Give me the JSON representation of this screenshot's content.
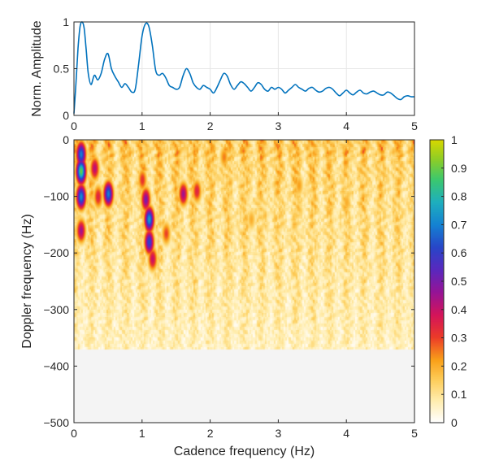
{
  "chart_data": [
    {
      "type": "line",
      "title": "",
      "xlabel": "",
      "ylabel": "Norm. Amplitude",
      "xlim": [
        0,
        5
      ],
      "ylim": [
        0,
        1
      ],
      "x_ticks": [
        "0",
        "1",
        "2",
        "3",
        "4",
        "5"
      ],
      "y_ticks": [
        "0",
        "0.5",
        "1"
      ],
      "grid": true,
      "series": [
        {
          "color": "#0072BD",
          "x": [
            0,
            0.03,
            0.06,
            0.09,
            0.12,
            0.15,
            0.18,
            0.21,
            0.25,
            0.3,
            0.35,
            0.4,
            0.45,
            0.5,
            0.55,
            0.6,
            0.65,
            0.7,
            0.75,
            0.8,
            0.85,
            0.9,
            0.95,
            1.0,
            1.05,
            1.1,
            1.15,
            1.2,
            1.25,
            1.3,
            1.35,
            1.4,
            1.45,
            1.5,
            1.55,
            1.6,
            1.65,
            1.7,
            1.75,
            1.8,
            1.85,
            1.9,
            1.95,
            2.0,
            2.05,
            2.1,
            2.15,
            2.2,
            2.25,
            2.3,
            2.35,
            2.4,
            2.45,
            2.5,
            2.55,
            2.6,
            2.65,
            2.7,
            2.75,
            2.8,
            2.85,
            2.9,
            2.95,
            3.0,
            3.05,
            3.1,
            3.15,
            3.2,
            3.25,
            3.3,
            3.35,
            3.4,
            3.45,
            3.5,
            3.55,
            3.6,
            3.65,
            3.7,
            3.75,
            3.8,
            3.85,
            3.9,
            3.95,
            4.0,
            4.05,
            4.1,
            4.15,
            4.2,
            4.25,
            4.3,
            4.35,
            4.4,
            4.45,
            4.5,
            4.55,
            4.6,
            4.65,
            4.7,
            4.75,
            4.8,
            4.85,
            4.9,
            4.95,
            5.0
          ],
          "y": [
            0.02,
            0.35,
            0.72,
            0.95,
            1.0,
            0.93,
            0.7,
            0.45,
            0.33,
            0.43,
            0.38,
            0.45,
            0.6,
            0.66,
            0.5,
            0.42,
            0.36,
            0.3,
            0.34,
            0.3,
            0.25,
            0.28,
            0.55,
            0.85,
            0.98,
            0.95,
            0.75,
            0.48,
            0.43,
            0.45,
            0.4,
            0.32,
            0.3,
            0.28,
            0.3,
            0.42,
            0.5,
            0.45,
            0.35,
            0.3,
            0.28,
            0.32,
            0.3,
            0.28,
            0.24,
            0.3,
            0.38,
            0.45,
            0.42,
            0.33,
            0.28,
            0.32,
            0.36,
            0.34,
            0.3,
            0.26,
            0.3,
            0.35,
            0.33,
            0.28,
            0.26,
            0.3,
            0.28,
            0.3,
            0.28,
            0.24,
            0.27,
            0.3,
            0.33,
            0.3,
            0.28,
            0.26,
            0.29,
            0.3,
            0.27,
            0.25,
            0.26,
            0.29,
            0.3,
            0.28,
            0.24,
            0.21,
            0.24,
            0.27,
            0.24,
            0.22,
            0.25,
            0.27,
            0.24,
            0.23,
            0.25,
            0.26,
            0.24,
            0.22,
            0.22,
            0.25,
            0.24,
            0.21,
            0.18,
            0.17,
            0.2,
            0.21,
            0.2,
            0.2
          ]
        }
      ]
    },
    {
      "type": "heatmap",
      "title": "",
      "xlabel": "Cadence frequency (Hz)",
      "ylabel": "Doppler frequency (Hz)",
      "xlim": [
        0,
        5
      ],
      "ylim": [
        -500,
        0
      ],
      "x_ticks": [
        "0",
        "1",
        "2",
        "3",
        "4",
        "5"
      ],
      "y_ticks": [
        "0",
        "-100",
        "-200",
        "-300",
        "-400",
        "-500"
      ],
      "colorbar": {
        "range": [
          0,
          1
        ],
        "ticks": [
          "0",
          "0.1",
          "0.2",
          "0.3",
          "0.4",
          "0.5",
          "0.6",
          "0.7",
          "0.8",
          "0.9",
          "1"
        ]
      },
      "grid": false,
      "hotspots": [
        {
          "x": 0.1,
          "y": -55,
          "value": 0.9
        },
        {
          "x": 0.1,
          "y": -25,
          "value": 0.7
        },
        {
          "x": 0.1,
          "y": -100,
          "value": 0.72
        },
        {
          "x": 0.1,
          "y": -160,
          "value": 0.45
        },
        {
          "x": 0.3,
          "y": -50,
          "value": 0.42
        },
        {
          "x": 0.5,
          "y": -95,
          "value": 0.7
        },
        {
          "x": 0.35,
          "y": -100,
          "value": 0.35
        },
        {
          "x": 1.0,
          "y": -70,
          "value": 0.32
        },
        {
          "x": 1.1,
          "y": -140,
          "value": 0.75
        },
        {
          "x": 1.1,
          "y": -180,
          "value": 0.62
        },
        {
          "x": 1.05,
          "y": -105,
          "value": 0.5
        },
        {
          "x": 1.15,
          "y": -210,
          "value": 0.4
        },
        {
          "x": 1.35,
          "y": -165,
          "value": 0.3
        },
        {
          "x": 1.6,
          "y": -95,
          "value": 0.45
        },
        {
          "x": 1.8,
          "y": -90,
          "value": 0.35
        },
        {
          "x": 2.2,
          "y": -30,
          "value": 0.25
        },
        {
          "x": 2.6,
          "y": -140,
          "value": 0.2
        },
        {
          "x": 3.3,
          "y": -80,
          "value": 0.22
        },
        {
          "x": 4.0,
          "y": -110,
          "value": 0.2
        }
      ],
      "signal_extent_hz": -370
    }
  ],
  "colors": {
    "line": "#0072BD",
    "grid": "#e6e6e6",
    "axis": "#262626",
    "empty_region": "#f4f4f4"
  }
}
